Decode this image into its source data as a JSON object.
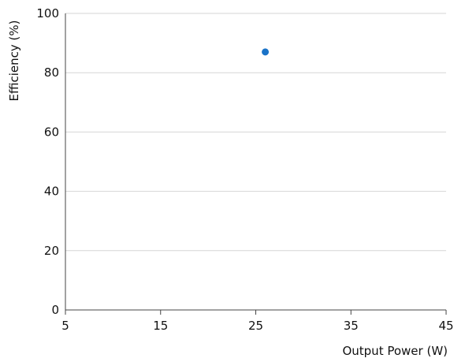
{
  "chart_data": {
    "type": "scatter",
    "xlabel": "Output Power (W)",
    "ylabel": "Efficiency (%)",
    "xlim": [
      5,
      45
    ],
    "ylim": [
      0,
      100
    ],
    "xticks": [
      5,
      15,
      25,
      35,
      45
    ],
    "yticks": [
      0,
      20,
      40,
      60,
      80,
      100
    ],
    "grid": "horizontal",
    "series": [
      {
        "points": [
          {
            "x": 26,
            "y": 87
          }
        ],
        "color": "#1a73c8"
      }
    ]
  }
}
